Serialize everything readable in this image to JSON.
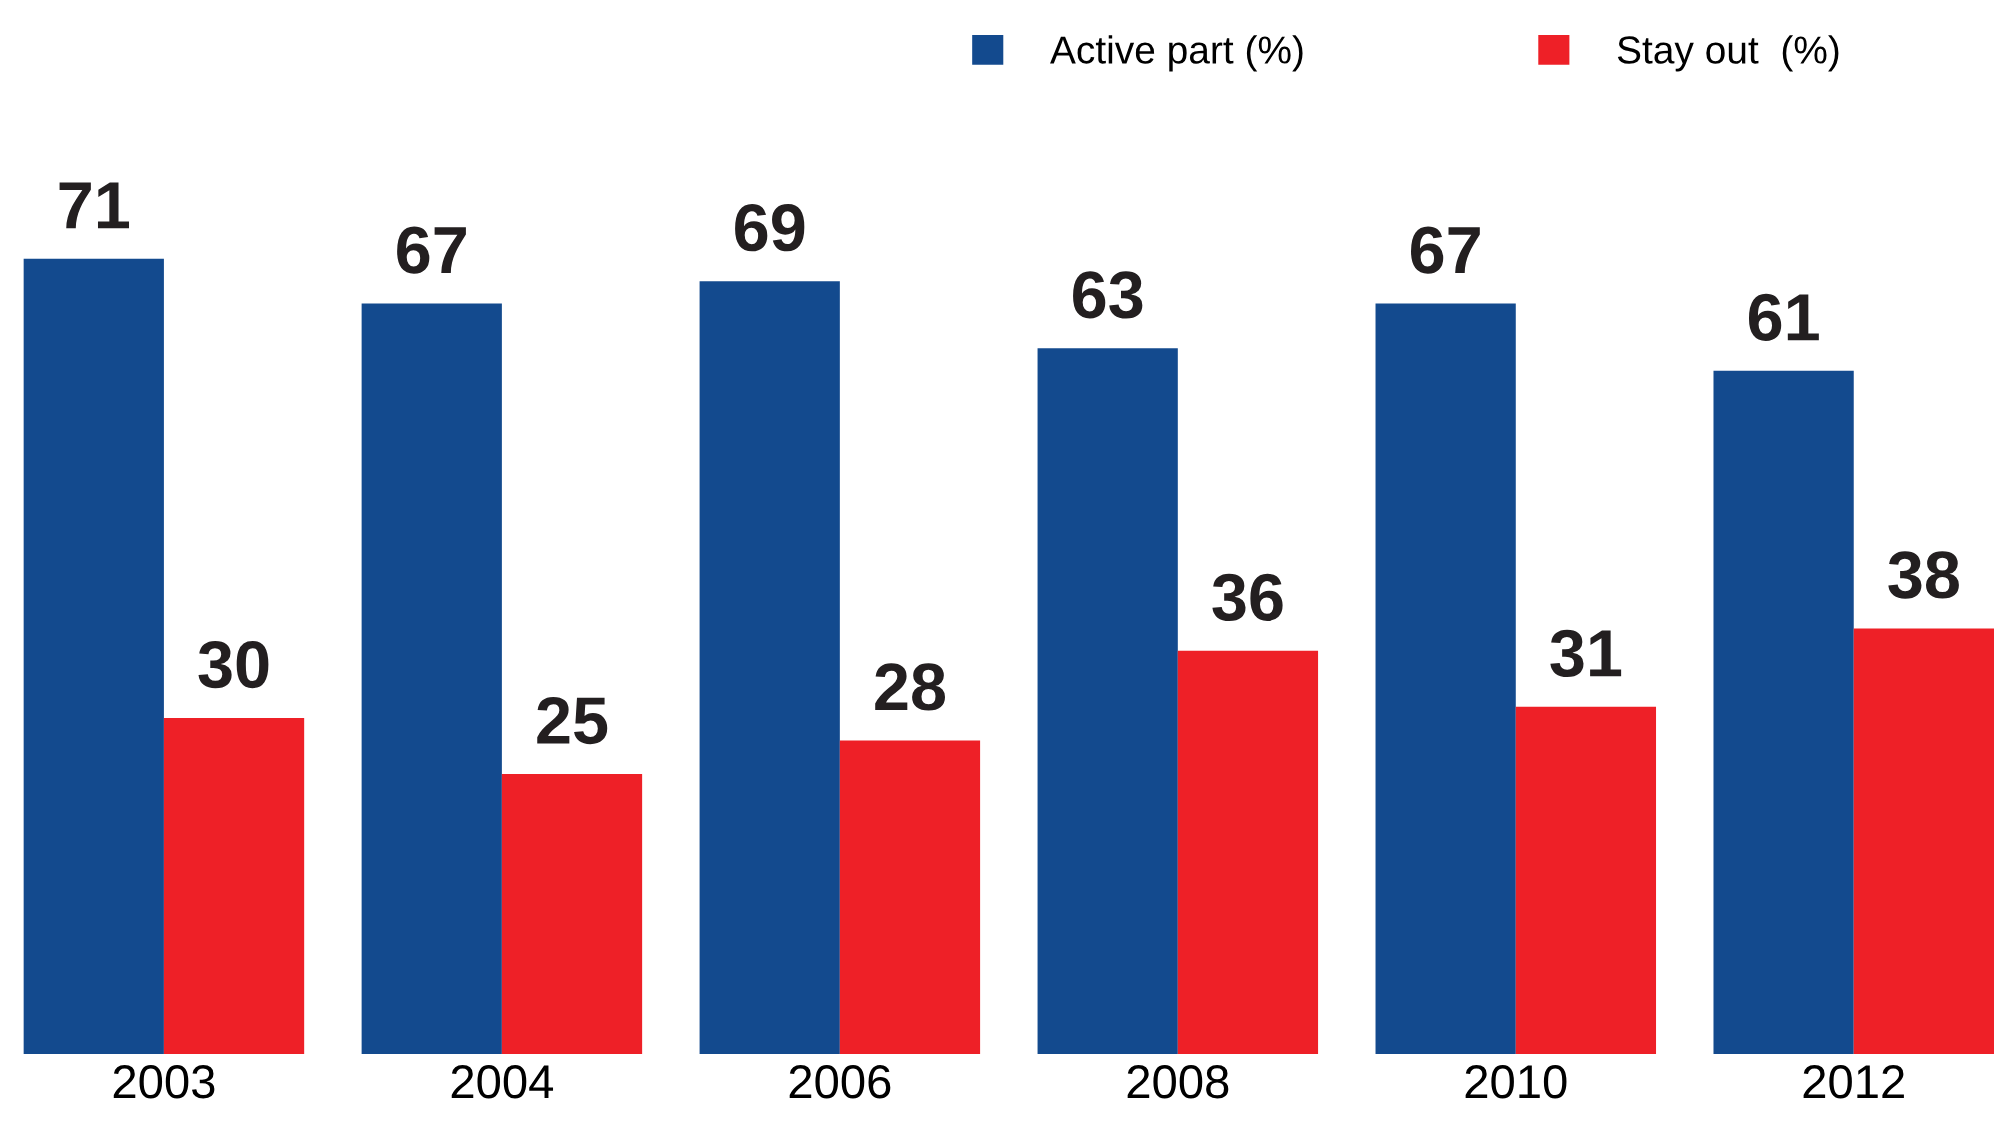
{
  "chart_data": {
    "type": "bar",
    "categories": [
      "2003",
      "2004",
      "2006",
      "2008",
      "2010",
      "2012"
    ],
    "series": [
      {
        "name": "Active part (%)",
        "color": "#134a8e",
        "values": [
          71,
          67,
          69,
          63,
          67,
          61
        ]
      },
      {
        "name": "Stay out  (%)",
        "color": "#ee2027",
        "values": [
          30,
          25,
          28,
          36,
          31,
          38
        ]
      }
    ],
    "data_labels": true,
    "legend": "top right",
    "grid": false,
    "tick_labels": "x"
  }
}
